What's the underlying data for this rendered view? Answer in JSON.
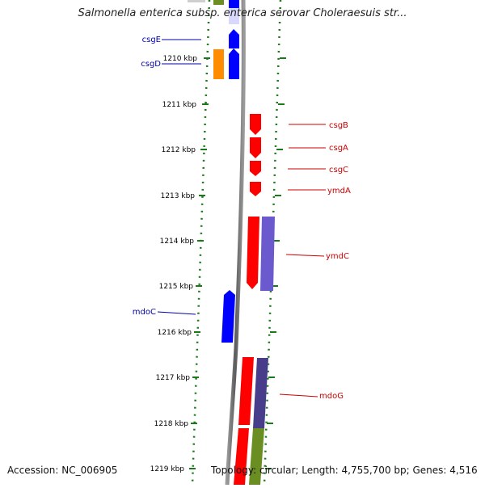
{
  "title": "Salmonella enterica subsp. enterica serovar Choleraesuis str...",
  "footer": {
    "accession": "Accession: NC_006905",
    "topology": "Topology: circular; Length: 4,755,700 bp; Genes: 4,516"
  },
  "colors": {
    "forward_gene": "#0000ff",
    "reverse_gene": "#ff0000",
    "cds_orange": "#ff8c00",
    "cds_purple": "#6a5acd",
    "cds_darkslate": "#483d8b",
    "cds_olive": "#6b8e23",
    "tick": "#1a7a1a",
    "backbone": "#808080"
  },
  "ruler_labels": [
    "1210 kbp",
    "1211 kbp",
    "1212 kbp",
    "1213 kbp",
    "1214 kbp",
    "1215 kbp",
    "1216 kbp",
    "1217 kbp",
    "1218 kbp",
    "1219 kbp"
  ],
  "genes_left": [
    "csgE",
    "csgD",
    "mdoC"
  ],
  "genes_right": [
    "csgB",
    "csgA",
    "csgC",
    "ymdA",
    "ymdC",
    "mdoG"
  ]
}
